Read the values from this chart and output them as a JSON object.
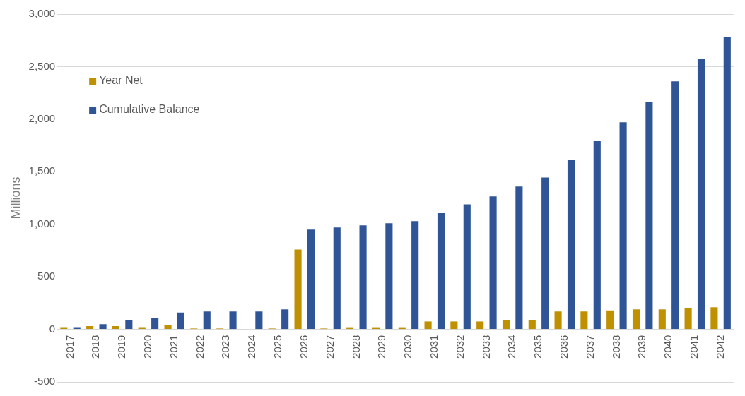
{
  "chart_data": {
    "type": "bar",
    "ylabel": "Millions",
    "categories": [
      "2017",
      "2018",
      "2019",
      "2020",
      "2021",
      "2022",
      "2023",
      "2024",
      "2025",
      "2026",
      "2027",
      "2028",
      "2029",
      "2030",
      "2031",
      "2032",
      "2033",
      "2034",
      "2035",
      "2036",
      "2037",
      "2038",
      "2039",
      "2040",
      "2041",
      "2042"
    ],
    "series": [
      {
        "name": "Year Net",
        "color": "#bf9000",
        "values": [
          20,
          30,
          30,
          20,
          40,
          8,
          8,
          0,
          8,
          760,
          8,
          20,
          20,
          20,
          75,
          75,
          75,
          85,
          85,
          170,
          170,
          180,
          190,
          190,
          200,
          210
        ]
      },
      {
        "name": "Cumulative Balance",
        "color": "#2f5597",
        "values": [
          20,
          50,
          85,
          105,
          160,
          170,
          170,
          170,
          190,
          950,
          970,
          990,
          1010,
          1030,
          1105,
          1190,
          1265,
          1360,
          1445,
          1615,
          1790,
          1970,
          2160,
          2360,
          2570,
          2780
        ]
      }
    ],
    "ylim": [
      -500,
      3000
    ],
    "yticks": [
      {
        "value": -500,
        "label": "-500"
      },
      0,
      500,
      {
        "value": 1000,
        "label": "1,000"
      },
      {
        "value": 1500,
        "label": "1,500"
      },
      {
        "value": 2000,
        "label": "2,000"
      },
      {
        "value": 2500,
        "label": "2,500"
      },
      {
        "value": 3000,
        "label": "3,000"
      }
    ],
    "grid": "y",
    "legend": "top left"
  }
}
